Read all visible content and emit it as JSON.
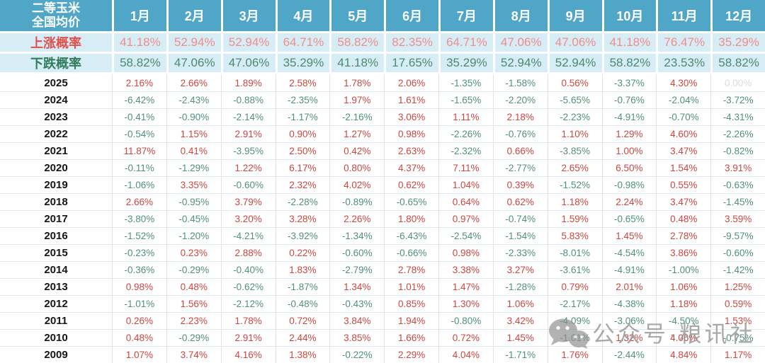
{
  "chart_data": {
    "type": "table",
    "title": "二等玉米全国均价",
    "corner_label_lines": [
      "二等玉米",
      "全国均价"
    ],
    "months": [
      "1月",
      "2月",
      "3月",
      "4月",
      "5月",
      "6月",
      "7月",
      "8月",
      "9月",
      "10月",
      "11月",
      "12月"
    ],
    "probability_rows": [
      {
        "label": "上涨概率",
        "kind": "rise",
        "values": [
          "41.18%",
          "52.94%",
          "52.94%",
          "64.71%",
          "58.82%",
          "82.35%",
          "64.71%",
          "47.06%",
          "47.06%",
          "41.18%",
          "76.47%",
          "35.29%"
        ]
      },
      {
        "label": "下跌概率",
        "kind": "fall",
        "values": [
          "58.82%",
          "47.06%",
          "47.06%",
          "35.29%",
          "41.18%",
          "17.65%",
          "35.29%",
          "52.94%",
          "52.94%",
          "58.82%",
          "23.53%",
          "58.82%"
        ]
      }
    ],
    "year_rows": [
      {
        "year": "2025",
        "values": [
          "2.16%",
          "2.66%",
          "1.89%",
          "2.58%",
          "1.78%",
          "2.06%",
          "-1.35%",
          "-1.58%",
          "0.56%",
          "-3.37%",
          "4.30%",
          "0.00%"
        ]
      },
      {
        "year": "2024",
        "values": [
          "-6.42%",
          "-2.43%",
          "-0.88%",
          "-2.35%",
          "1.97%",
          "1.61%",
          "-1.65%",
          "-2.20%",
          "-5.65%",
          "-0.76%",
          "-2.04%",
          "-3.72%"
        ]
      },
      {
        "year": "2023",
        "values": [
          "-0.41%",
          "-0.90%",
          "-2.14%",
          "-1.17%",
          "-2.16%",
          "3.06%",
          "1.11%",
          "2.18%",
          "-2.23%",
          "-4.91%",
          "-0.70%",
          "-4.31%"
        ]
      },
      {
        "year": "2022",
        "values": [
          "-0.54%",
          "1.15%",
          "2.91%",
          "0.90%",
          "1.27%",
          "0.98%",
          "-2.26%",
          "-0.76%",
          "1.10%",
          "1.29%",
          "4.60%",
          "-2.26%"
        ]
      },
      {
        "year": "2021",
        "values": [
          "11.87%",
          "0.41%",
          "-3.95%",
          "2.50%",
          "0.42%",
          "2.63%",
          "-2.32%",
          "0.66%",
          "-3.85%",
          "1.00%",
          "3.47%",
          "-0.82%"
        ]
      },
      {
        "year": "2020",
        "values": [
          "-0.11%",
          "-1.29%",
          "1.22%",
          "6.17%",
          "0.80%",
          "4.37%",
          "7.11%",
          "-2.77%",
          "2.65%",
          "6.50%",
          "1.54%",
          "3.91%"
        ]
      },
      {
        "year": "2019",
        "values": [
          "-1.06%",
          "3.35%",
          "-0.60%",
          "2.32%",
          "4.02%",
          "0.62%",
          "1.04%",
          "0.39%",
          "-1.52%",
          "-0.98%",
          "0.55%",
          "-0.63%"
        ]
      },
      {
        "year": "2018",
        "values": [
          "2.66%",
          "-0.95%",
          "3.79%",
          "-2.28%",
          "-0.89%",
          "-0.65%",
          "0.64%",
          "0.62%",
          "1.18%",
          "2.24%",
          "3.47%",
          "-1.45%"
        ]
      },
      {
        "year": "2017",
        "values": [
          "-3.80%",
          "-0.45%",
          "3.20%",
          "3.28%",
          "2.26%",
          "1.80%",
          "0.97%",
          "-0.74%",
          "1.59%",
          "-0.65%",
          "0.48%",
          "3.59%"
        ]
      },
      {
        "year": "2016",
        "values": [
          "-1.52%",
          "-1.20%",
          "-4.21%",
          "-3.92%",
          "-1.34%",
          "-6.43%",
          "-2.54%",
          "-1.54%",
          "5.83%",
          "1.45%",
          "2.78%",
          "-9.57%"
        ]
      },
      {
        "year": "2015",
        "values": [
          "-0.23%",
          "0.23%",
          "2.88%",
          "0.22%",
          "-0.60%",
          "-0.66%",
          "0.98%",
          "-2.33%",
          "-8.01%",
          "-4.54%",
          "3.86%",
          "-0.60%"
        ]
      },
      {
        "year": "2014",
        "values": [
          "-0.36%",
          "-0.29%",
          "-0.40%",
          "1.83%",
          "-2.79%",
          "2.78%",
          "3.38%",
          "3.27%",
          "-3.61%",
          "-4.91%",
          "-1.00%",
          "-1.42%"
        ]
      },
      {
        "year": "2013",
        "values": [
          "0.98%",
          "0.48%",
          "-0.62%",
          "-1.87%",
          "1.34%",
          "1.01%",
          "1.47%",
          "-1.28%",
          "0.79%",
          "2.01%",
          "1.06%",
          "1.25%"
        ]
      },
      {
        "year": "2012",
        "values": [
          "-1.01%",
          "1.56%",
          "-2.12%",
          "-0.48%",
          "-0.43%",
          "0.85%",
          "1.30%",
          "1.06%",
          "-2.17%",
          "-4.38%",
          "1.18%",
          "0.59%"
        ]
      },
      {
        "year": "2011",
        "values": [
          "0.26%",
          "2.23%",
          "1.78%",
          "0.72%",
          "3.84%",
          "1.94%",
          "-0.80%",
          "3.42%",
          "-4.09%",
          "-3.06%",
          "-4.50%",
          "1.53%"
        ]
      },
      {
        "year": "2010",
        "values": [
          "0.48%",
          "-0.29%",
          "2.91%",
          "2.44%",
          "3.85%",
          "1.66%",
          "0.72%",
          "1.45%",
          "-1.01%",
          "1.32%",
          "4.06%",
          "-0.75%"
        ]
      },
      {
        "year": "2009",
        "values": [
          "1.07%",
          "3.74%",
          "4.16%",
          "1.38%",
          "-0.22%",
          "2.29%",
          "4.04%",
          "-1.71%",
          "1.76%",
          "-2.44%",
          "4.84%",
          "1.17%"
        ]
      }
    ],
    "value_semantics": {
      "positive": "red = price rise",
      "negative": "green = price fall",
      "zero": "gray = no data yet"
    },
    "layout_hints": {
      "grid": true,
      "header_position": "top",
      "label_column": "left"
    }
  },
  "watermark": {
    "icon": "wechat-icon",
    "text": "公众号·粮讯社"
  },
  "colors": {
    "header_bg": "#50a6c6",
    "prob_bg": "#d7edf6",
    "rise_label": "#e2504d",
    "rise_value": "#f18c8c",
    "fall_label": "#2f7d5c",
    "fall_value": "#4a8a6e",
    "positive": "#cc4741",
    "negative": "#519178",
    "future": "#d8dde3",
    "grid_h": "#dbe8ef",
    "grid_v": "#e0e4e7",
    "year_text": "#161616"
  }
}
